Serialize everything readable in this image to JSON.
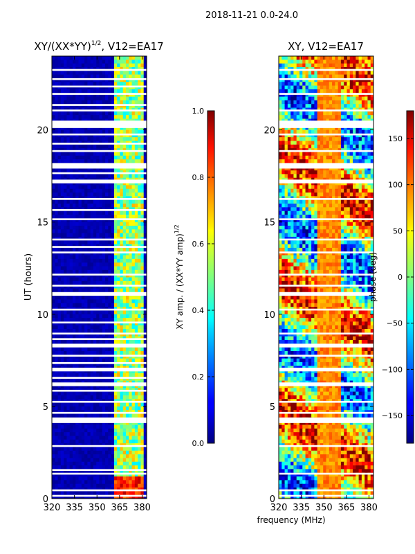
{
  "figure": {
    "suptitle": "2018-11-21 0.0-24.0",
    "xlabel": "frequency (MHz)"
  },
  "chart_data": [
    {
      "type": "heatmap",
      "title_main": "XY/(XX*YY)",
      "title_sup": "1/2",
      "title_tail": ", V12=EA17",
      "xlabel": "",
      "ylabel": "UT (hours)",
      "xlim": [
        320,
        383
      ],
      "ylim": [
        0,
        24
      ],
      "xticks": [
        "320",
        "335",
        "350",
        "365",
        "380"
      ],
      "xtick_values": [
        320,
        335,
        350,
        365,
        380
      ],
      "yticks": [
        "0",
        "5",
        "10",
        "15",
        "20"
      ],
      "ytick_values": [
        0,
        5,
        10,
        15,
        20
      ],
      "colorbar": {
        "label_main": "XY amp. / (XX*YY amp)",
        "label_sup": "1/2",
        "range": [
          0.0,
          1.0
        ],
        "ticks": [
          "0.0",
          "0.2",
          "0.4",
          "0.6",
          "0.8",
          "1.0"
        ],
        "tick_values": [
          0.0,
          0.2,
          0.4,
          0.6,
          0.8,
          1.0
        ],
        "colormap": "jet"
      },
      "flagged_time_ranges_hours": [
        [
          0.1,
          0.2
        ],
        [
          0.4,
          0.5
        ],
        [
          1.3,
          1.4
        ],
        [
          1.5,
          1.6
        ],
        [
          2.8,
          2.9
        ],
        [
          4.1,
          4.4
        ],
        [
          4.6,
          4.7
        ],
        [
          5.2,
          5.3
        ],
        [
          5.8,
          5.9
        ],
        [
          6.1,
          6.3
        ],
        [
          6.5,
          6.6
        ],
        [
          6.9,
          7.1
        ],
        [
          7.3,
          7.4
        ],
        [
          7.7,
          7.8
        ],
        [
          8.2,
          8.4
        ],
        [
          8.6,
          8.7
        ],
        [
          8.9,
          9.0
        ],
        [
          9.5,
          9.6
        ],
        [
          10.2,
          10.3
        ],
        [
          11.0,
          11.2
        ],
        [
          11.5,
          11.6
        ],
        [
          12.1,
          12.2
        ],
        [
          13.3,
          13.4
        ],
        [
          13.6,
          13.7
        ],
        [
          14.0,
          14.1
        ],
        [
          15.1,
          15.2
        ],
        [
          15.6,
          15.7
        ],
        [
          16.2,
          16.3
        ],
        [
          17.1,
          17.3
        ],
        [
          17.6,
          17.7
        ],
        [
          17.9,
          18.2
        ],
        [
          18.8,
          18.9
        ],
        [
          19.2,
          19.3
        ],
        [
          19.7,
          19.8
        ],
        [
          20.1,
          20.5
        ],
        [
          21.0,
          21.1
        ],
        [
          21.3,
          21.4
        ],
        [
          21.9,
          22.0
        ],
        [
          22.3,
          22.4
        ],
        [
          22.7,
          22.8
        ],
        [
          23.2,
          23.3
        ]
      ],
      "bright_channels_mhz": [
        [
          362,
          365
        ],
        [
          366,
          369
        ],
        [
          370,
          373
        ],
        [
          374,
          377
        ],
        [
          378,
          381
        ]
      ]
    },
    {
      "type": "heatmap",
      "title": "XY, V12=EA17",
      "xlabel": "",
      "ylabel": "",
      "xlim": [
        320,
        383
      ],
      "ylim": [
        0,
        24
      ],
      "xticks": [
        "320",
        "335",
        "350",
        "365",
        "380"
      ],
      "xtick_values": [
        320,
        335,
        350,
        365,
        380
      ],
      "yticks": [
        "0",
        "5",
        "10",
        "15",
        "20"
      ],
      "ytick_values": [
        0,
        5,
        10,
        15,
        20
      ],
      "colorbar": {
        "label": "phase (deg)",
        "range": [
          -180,
          180
        ],
        "ticks": [
          "150",
          "100",
          "50",
          "0",
          "−50",
          "−100",
          "−150"
        ],
        "tick_values": [
          150,
          100,
          50,
          0,
          -50,
          -100,
          -150
        ],
        "colormap": "jet"
      },
      "flagged_time_ranges_hours": [
        [
          0.1,
          0.2
        ],
        [
          0.4,
          0.5
        ],
        [
          1.3,
          1.4
        ],
        [
          2.8,
          2.9
        ],
        [
          4.1,
          4.4
        ],
        [
          4.6,
          4.7
        ],
        [
          5.2,
          5.3
        ],
        [
          6.1,
          6.3
        ],
        [
          6.9,
          7.1
        ],
        [
          7.7,
          7.8
        ],
        [
          8.2,
          8.4
        ],
        [
          8.9,
          9.0
        ],
        [
          10.2,
          10.3
        ],
        [
          11.0,
          11.2
        ],
        [
          11.5,
          11.6
        ],
        [
          12.1,
          12.2
        ],
        [
          13.3,
          13.4
        ],
        [
          14.0,
          14.1
        ],
        [
          15.1,
          15.2
        ],
        [
          16.2,
          16.3
        ],
        [
          17.1,
          17.3
        ],
        [
          17.9,
          18.2
        ],
        [
          18.8,
          18.9
        ],
        [
          19.7,
          19.8
        ],
        [
          20.1,
          20.5
        ],
        [
          21.0,
          21.1
        ],
        [
          21.9,
          22.0
        ],
        [
          22.7,
          22.8
        ],
        [
          23.2,
          23.3
        ]
      ]
    }
  ]
}
